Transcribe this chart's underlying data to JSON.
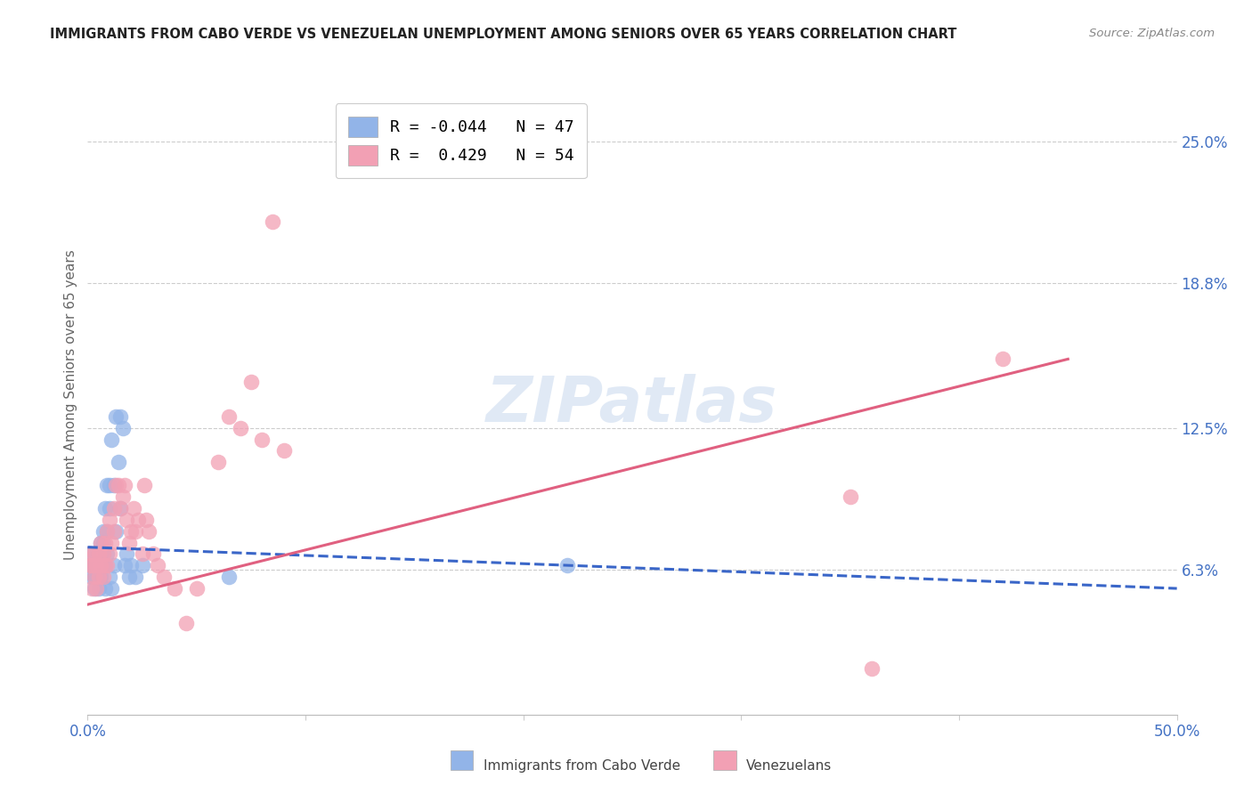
{
  "title": "IMMIGRANTS FROM CABO VERDE VS VENEZUELAN UNEMPLOYMENT AMONG SENIORS OVER 65 YEARS CORRELATION CHART",
  "source": "Source: ZipAtlas.com",
  "ylabel": "Unemployment Among Seniors over 65 years",
  "ytick_labels": [
    "25.0%",
    "18.8%",
    "12.5%",
    "6.3%"
  ],
  "ytick_values": [
    0.25,
    0.188,
    0.125,
    0.063
  ],
  "xlim": [
    0.0,
    0.5
  ],
  "ylim": [
    0.0,
    0.27
  ],
  "r_cabo": -0.044,
  "n_cabo": 47,
  "r_venezuela": 0.429,
  "n_venezuela": 54,
  "legend_label_cabo": "Immigrants from Cabo Verde",
  "legend_label_venezuela": "Venezuelans",
  "color_cabo": "#92b4e8",
  "color_venezuela": "#f2a0b4",
  "color_cabo_line": "#3a66c8",
  "color_venezuela_line": "#e06080",
  "color_axis_labels": "#4472c4",
  "cabo_scatter_x": [
    0.001,
    0.001,
    0.002,
    0.002,
    0.003,
    0.003,
    0.003,
    0.004,
    0.004,
    0.005,
    0.005,
    0.005,
    0.006,
    0.006,
    0.006,
    0.006,
    0.007,
    0.007,
    0.007,
    0.007,
    0.008,
    0.008,
    0.008,
    0.009,
    0.009,
    0.009,
    0.01,
    0.01,
    0.01,
    0.011,
    0.011,
    0.012,
    0.012,
    0.013,
    0.013,
    0.014,
    0.015,
    0.015,
    0.016,
    0.017,
    0.018,
    0.019,
    0.02,
    0.022,
    0.025,
    0.065,
    0.22
  ],
  "cabo_scatter_y": [
    0.065,
    0.07,
    0.06,
    0.065,
    0.055,
    0.06,
    0.065,
    0.06,
    0.07,
    0.055,
    0.065,
    0.07,
    0.06,
    0.065,
    0.07,
    0.075,
    0.065,
    0.07,
    0.075,
    0.08,
    0.055,
    0.065,
    0.09,
    0.07,
    0.08,
    0.1,
    0.06,
    0.09,
    0.1,
    0.055,
    0.12,
    0.065,
    0.1,
    0.08,
    0.13,
    0.11,
    0.09,
    0.13,
    0.125,
    0.065,
    0.07,
    0.06,
    0.065,
    0.06,
    0.065,
    0.06,
    0.065
  ],
  "venezuela_scatter_x": [
    0.001,
    0.001,
    0.002,
    0.002,
    0.003,
    0.003,
    0.004,
    0.004,
    0.005,
    0.005,
    0.006,
    0.006,
    0.007,
    0.007,
    0.008,
    0.008,
    0.009,
    0.009,
    0.01,
    0.01,
    0.011,
    0.012,
    0.012,
    0.013,
    0.014,
    0.015,
    0.016,
    0.017,
    0.018,
    0.019,
    0.02,
    0.021,
    0.022,
    0.023,
    0.025,
    0.026,
    0.027,
    0.028,
    0.03,
    0.032,
    0.035,
    0.04,
    0.045,
    0.05,
    0.06,
    0.065,
    0.07,
    0.075,
    0.08,
    0.085,
    0.09,
    0.35,
    0.36,
    0.42
  ],
  "venezuela_scatter_y": [
    0.065,
    0.07,
    0.055,
    0.065,
    0.06,
    0.07,
    0.055,
    0.065,
    0.06,
    0.07,
    0.065,
    0.075,
    0.06,
    0.07,
    0.065,
    0.075,
    0.065,
    0.08,
    0.07,
    0.085,
    0.075,
    0.08,
    0.09,
    0.1,
    0.1,
    0.09,
    0.095,
    0.1,
    0.085,
    0.075,
    0.08,
    0.09,
    0.08,
    0.085,
    0.07,
    0.1,
    0.085,
    0.08,
    0.07,
    0.065,
    0.06,
    0.055,
    0.04,
    0.055,
    0.11,
    0.13,
    0.125,
    0.145,
    0.12,
    0.215,
    0.115,
    0.095,
    0.02,
    0.155
  ],
  "cabo_line_x": [
    0.0,
    0.5
  ],
  "cabo_line_y": [
    0.073,
    0.055
  ],
  "ven_line_x": [
    0.0,
    0.45
  ],
  "ven_line_y": [
    0.048,
    0.155
  ]
}
